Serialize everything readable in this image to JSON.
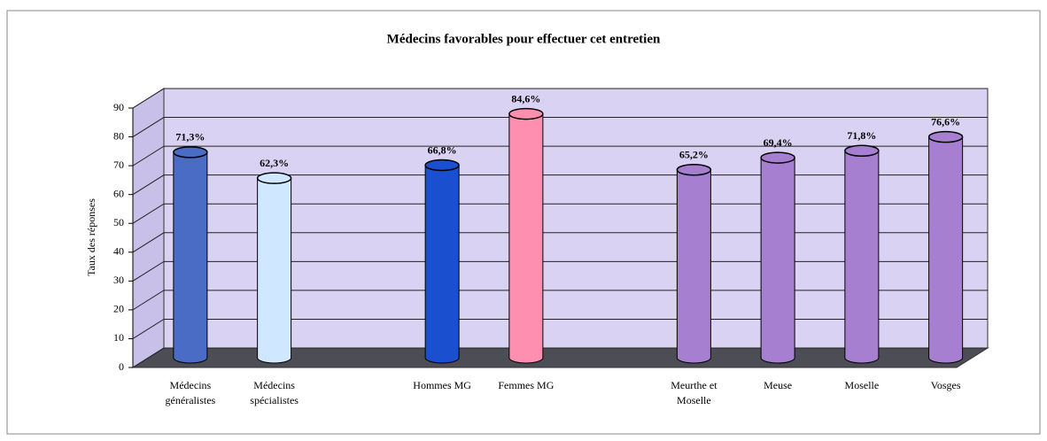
{
  "chart_data": {
    "type": "bar3d",
    "title": "Médecins favorables pour effectuer cet entretien",
    "y_label": "Taux des réponses",
    "categories": [
      "Médecins généralistes",
      "Médecins spécialistes",
      null,
      "Hommes MG",
      "Femmes MG",
      null,
      "Meurthe et Moselle",
      "Meuse",
      "Moselle",
      "Vosges"
    ],
    "values": [
      71.3,
      62.3,
      null,
      66.8,
      84.6,
      null,
      65.2,
      69.4,
      71.8,
      76.6
    ],
    "value_labels": [
      "71,3%",
      "62,3%",
      null,
      "66,8%",
      "84,6%",
      null,
      "65,2%",
      "69,4%",
      "71,8%",
      "76,6%"
    ],
    "colors": [
      "#4a6cc4",
      "#cfe8ff",
      null,
      "#1a4fd0",
      "#ff8fb0",
      null,
      "#a77fd0",
      "#a77fd0",
      "#a77fd0",
      "#a77fd0"
    ],
    "ylim": [
      0,
      90
    ],
    "yticks": [
      0,
      10,
      20,
      30,
      40,
      50,
      60,
      70,
      80,
      90
    ],
    "grid": true
  }
}
